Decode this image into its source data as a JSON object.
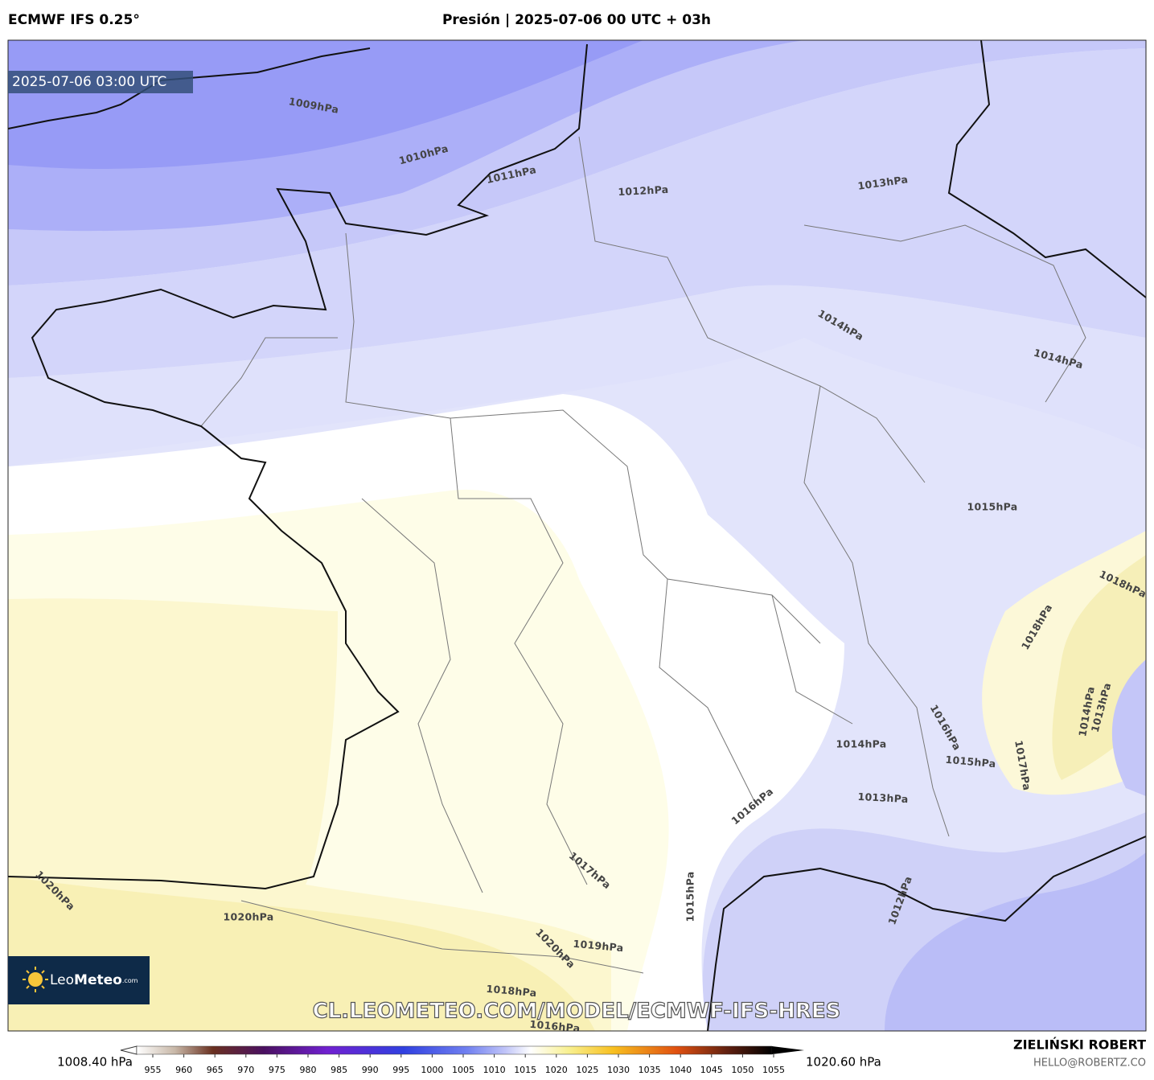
{
  "header": {
    "model": "ECMWF IFS 0.25°",
    "title": "Presión | 2025-07-06 00 UTC + 03h"
  },
  "timestamp": "2025-07-06 03:00 UTC",
  "watermark": "CL.LEOMETEO.COM/MODEL/ECMWF-IFS-HRES",
  "logo": {
    "leo": "Leo",
    "meteo": "Meteo",
    "suffix": ".com"
  },
  "contour_labels": [
    "1009hPa",
    "1010hPa",
    "1011hPa",
    "1012hPa",
    "1013hPa",
    "1014hPa",
    "1014hPa",
    "1015hPa",
    "1018hPa",
    "1018hPa",
    "1016hPa",
    "1015hPa",
    "1017hPa",
    "1014hPa",
    "1013hPa",
    "1014hPa",
    "1013hPa",
    "1016hPa",
    "1015hPa",
    "1012hPa",
    "1017hPa",
    "1020hPa",
    "1020hPa",
    "1020hPa",
    "1019hPa",
    "1018hPa",
    "1016hPa"
  ],
  "colorbar": {
    "min_label": "1008.40 hPa",
    "max_label": "1020.60 hPa",
    "ticks": [
      955,
      960,
      965,
      970,
      975,
      980,
      985,
      990,
      995,
      1000,
      1005,
      1010,
      1015,
      1020,
      1025,
      1030,
      1035,
      1040,
      1045,
      1050,
      1055
    ]
  },
  "credit": {
    "author": "ZIELIŃSKI ROBERT",
    "email": "HELLO@ROBERTZ.CO"
  }
}
